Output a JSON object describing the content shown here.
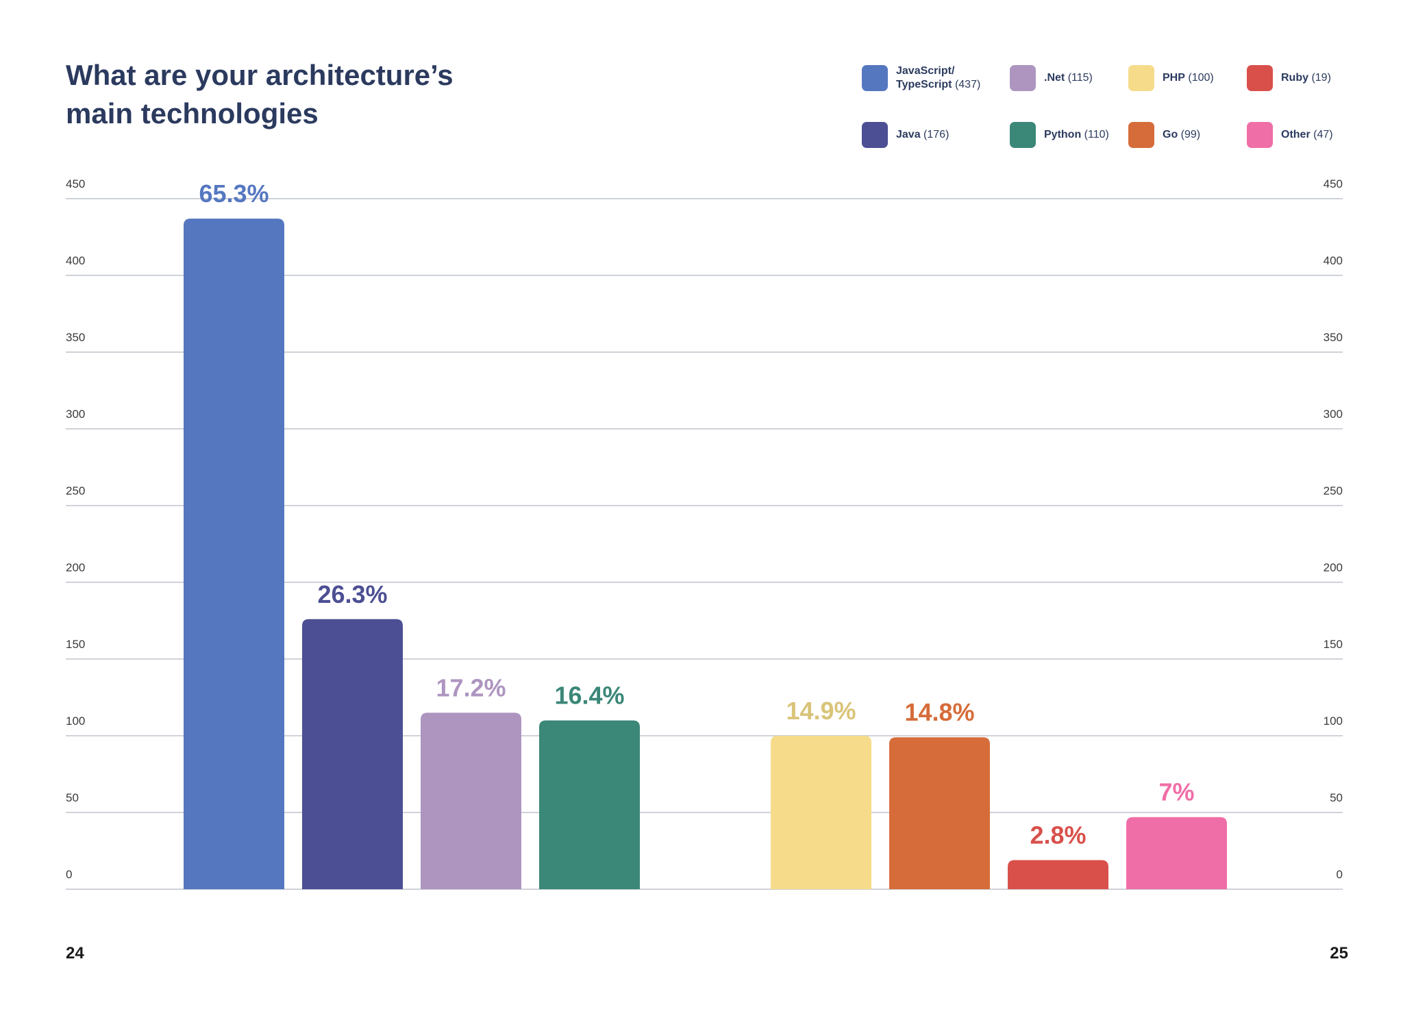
{
  "page": {
    "title": "What are your architecture’s main technologies",
    "page_left": "24",
    "page_right": "25"
  },
  "chart_data": {
    "type": "bar",
    "title": "What are your architecture’s main technologies",
    "xlabel": "",
    "ylabel": "",
    "ylim": [
      0,
      450
    ],
    "yticks": [
      0,
      50,
      100,
      150,
      200,
      250,
      300,
      350,
      400,
      450
    ],
    "grid": true,
    "legend_position": "top-right",
    "categories": [
      "JavaScript/ TypeScript",
      "Java",
      ".Net",
      "Python",
      "PHP",
      "Go",
      "Ruby",
      "Other"
    ],
    "values": [
      437,
      176,
      115,
      110,
      100,
      99,
      19,
      47
    ],
    "percent_labels": [
      "65.3%",
      "26.3%",
      "17.2%",
      "16.4%",
      "14.9%",
      "14.8%",
      "2.8%",
      "7%"
    ],
    "colors": [
      "#5577c0",
      "#4c4f93",
      "#ae95c0",
      "#3b8778",
      "#f6dc8a",
      "#d66c3a",
      "#d9504b",
      "#f06ea7"
    ],
    "label_colors": [
      "#5577c0",
      "#4c4f93",
      "#ae95c0",
      "#3b8778",
      "#d9c479",
      "#d66c3a",
      "#d9504b",
      "#f06ea7"
    ],
    "legend": [
      {
        "name": "JavaScript/ TypeScript",
        "count": "(437)",
        "color": "#5577c0"
      },
      {
        "name": ".Net",
        "count": "(115)",
        "color": "#ae95c0"
      },
      {
        "name": "PHP",
        "count": "(100)",
        "color": "#f6dc8a"
      },
      {
        "name": "Ruby",
        "count": "(19)",
        "color": "#d9504b"
      },
      {
        "name": "Java",
        "count": "(176)",
        "color": "#4c4f93"
      },
      {
        "name": "Python",
        "count": "(110)",
        "color": "#3b8778"
      },
      {
        "name": "Go",
        "count": "(99)",
        "color": "#d66c3a"
      },
      {
        "name": "Other",
        "count": "(47)",
        "color": "#f06ea7"
      }
    ]
  }
}
